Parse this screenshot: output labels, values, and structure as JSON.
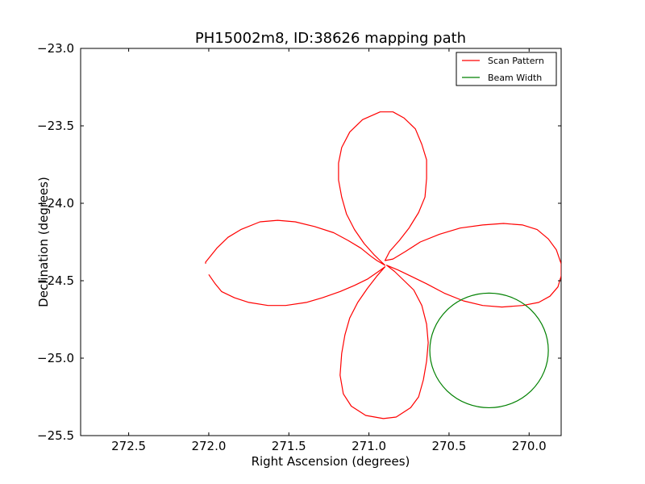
{
  "chart_data": {
    "type": "line",
    "title": "PH15002m8, ID:38626 mapping path",
    "xlabel": "Right Ascension (degrees)",
    "ylabel": "Declination (degrees)",
    "xlim": [
      272.8,
      269.8
    ],
    "ylim": [
      -25.5,
      -23.0
    ],
    "x_inverted": true,
    "xticks": [
      272.5,
      272.0,
      271.5,
      271.0,
      270.5,
      270.0
    ],
    "xtick_labels": [
      "272.5",
      "272.0",
      "271.5",
      "271.0",
      "270.5",
      "270.0"
    ],
    "yticks": [
      -23.0,
      -23.5,
      -24.0,
      -24.5,
      -25.0,
      -25.5
    ],
    "ytick_labels": [
      "−23.0",
      "−23.5",
      "−24.0",
      "−24.5",
      "−25.0",
      "−25.5"
    ],
    "grid": false,
    "legend_position": "top-right",
    "series": [
      {
        "name": "Scan Pattern",
        "color": "#ff0000",
        "points": [
          [
            272.02,
            -24.39
          ],
          [
            272.02,
            -24.38
          ],
          [
            271.95,
            -24.29
          ],
          [
            271.88,
            -24.22
          ],
          [
            271.8,
            -24.17
          ],
          [
            271.68,
            -24.12
          ],
          [
            271.57,
            -24.11
          ],
          [
            271.46,
            -24.12
          ],
          [
            271.34,
            -24.15
          ],
          [
            271.22,
            -24.19
          ],
          [
            271.13,
            -24.24
          ],
          [
            271.05,
            -24.29
          ],
          [
            270.99,
            -24.34
          ],
          [
            270.95,
            -24.37
          ],
          [
            270.9,
            -24.4
          ],
          [
            270.92,
            -24.38
          ],
          [
            270.97,
            -24.33
          ],
          [
            271.03,
            -24.26
          ],
          [
            271.09,
            -24.17
          ],
          [
            271.14,
            -24.07
          ],
          [
            271.17,
            -23.96
          ],
          [
            271.19,
            -23.85
          ],
          [
            271.19,
            -23.74
          ],
          [
            271.17,
            -23.64
          ],
          [
            271.12,
            -23.54
          ],
          [
            271.04,
            -23.46
          ],
          [
            270.93,
            -23.41
          ],
          [
            270.85,
            -23.41
          ],
          [
            270.78,
            -23.45
          ],
          [
            270.71,
            -23.52
          ],
          [
            270.67,
            -23.62
          ],
          [
            270.64,
            -23.72
          ],
          [
            270.64,
            -23.84
          ],
          [
            270.65,
            -23.96
          ],
          [
            270.69,
            -24.06
          ],
          [
            270.75,
            -24.16
          ],
          [
            270.81,
            -24.24
          ],
          [
            270.87,
            -24.31
          ],
          [
            270.9,
            -24.37
          ],
          [
            270.85,
            -24.36
          ],
          [
            270.77,
            -24.31
          ],
          [
            270.68,
            -24.25
          ],
          [
            270.56,
            -24.2
          ],
          [
            270.43,
            -24.16
          ],
          [
            270.29,
            -24.14
          ],
          [
            270.16,
            -24.13
          ],
          [
            270.04,
            -24.14
          ],
          [
            269.95,
            -24.17
          ],
          [
            269.88,
            -24.23
          ],
          [
            269.83,
            -24.3
          ],
          [
            269.8,
            -24.39
          ],
          [
            269.8,
            -24.47
          ],
          [
            269.82,
            -24.54
          ],
          [
            269.87,
            -24.6
          ],
          [
            269.94,
            -24.64
          ],
          [
            270.04,
            -24.66
          ],
          [
            270.17,
            -24.67
          ],
          [
            270.29,
            -24.66
          ],
          [
            270.41,
            -24.63
          ],
          [
            270.53,
            -24.58
          ],
          [
            270.64,
            -24.52
          ],
          [
            270.74,
            -24.47
          ],
          [
            270.82,
            -24.43
          ],
          [
            270.89,
            -24.4
          ],
          [
            270.84,
            -24.44
          ],
          [
            270.78,
            -24.5
          ],
          [
            270.72,
            -24.56
          ],
          [
            270.67,
            -24.66
          ],
          [
            270.64,
            -24.78
          ],
          [
            270.63,
            -24.9
          ],
          [
            270.64,
            -25.02
          ],
          [
            270.66,
            -25.14
          ],
          [
            270.69,
            -25.25
          ],
          [
            270.74,
            -25.32
          ],
          [
            270.83,
            -25.38
          ],
          [
            270.91,
            -25.39
          ],
          [
            271.02,
            -25.37
          ],
          [
            271.11,
            -25.31
          ],
          [
            271.16,
            -25.23
          ],
          [
            271.18,
            -25.11
          ],
          [
            271.17,
            -24.97
          ],
          [
            271.15,
            -24.85
          ],
          [
            271.12,
            -24.74
          ],
          [
            271.07,
            -24.64
          ],
          [
            271.01,
            -24.55
          ],
          [
            270.95,
            -24.47
          ],
          [
            270.9,
            -24.41
          ],
          [
            270.94,
            -24.44
          ],
          [
            271.01,
            -24.49
          ],
          [
            271.09,
            -24.53
          ],
          [
            271.18,
            -24.57
          ],
          [
            271.29,
            -24.61
          ],
          [
            271.39,
            -24.64
          ],
          [
            271.52,
            -24.66
          ],
          [
            271.63,
            -24.66
          ],
          [
            271.75,
            -24.64
          ],
          [
            271.84,
            -24.61
          ],
          [
            271.92,
            -24.57
          ],
          [
            271.96,
            -24.52
          ],
          [
            272.0,
            -24.46
          ]
        ]
      },
      {
        "name": "Beam Width",
        "color": "#008000",
        "shape": "circle",
        "center": [
          270.25,
          -24.95
        ],
        "radius": 0.37
      }
    ]
  }
}
